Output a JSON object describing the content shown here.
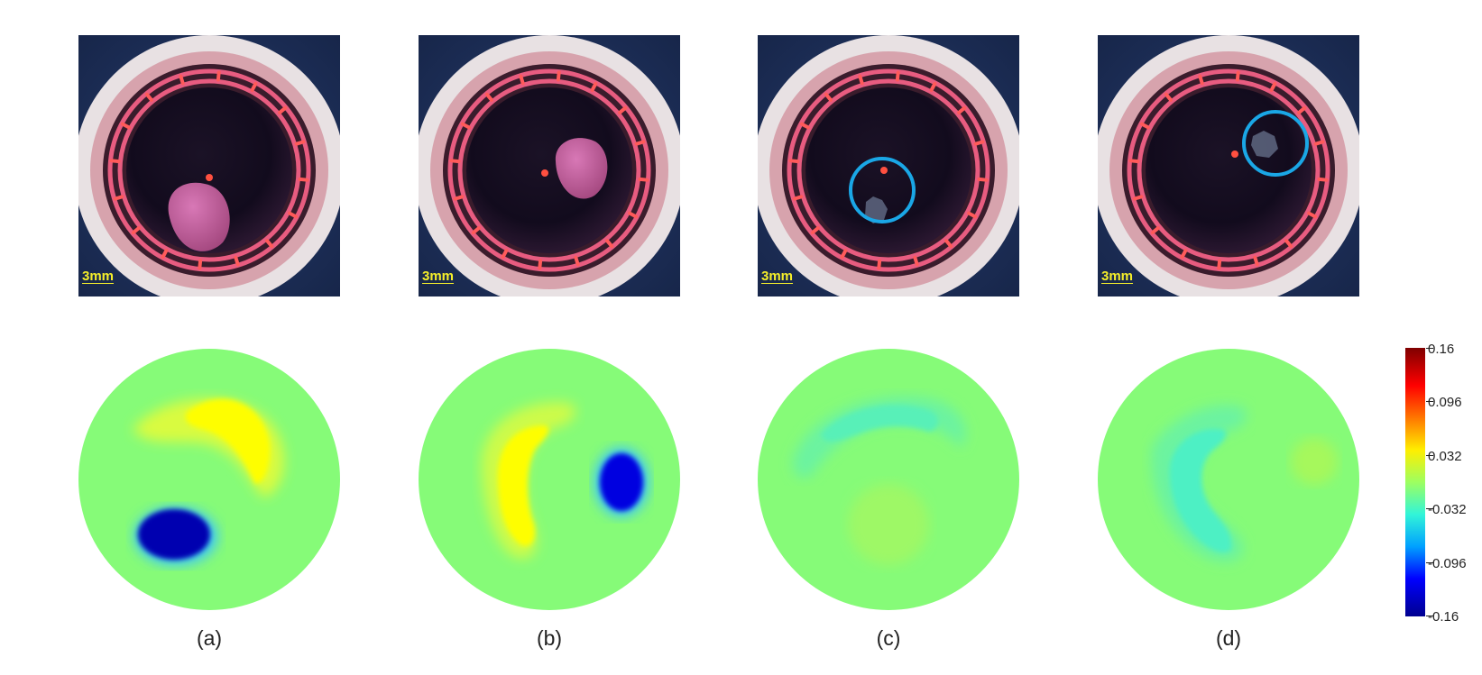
{
  "panels": [
    {
      "caption": "(a)",
      "scale": "3mm"
    },
    {
      "caption": "(b)",
      "scale": "3mm"
    },
    {
      "caption": "(c)",
      "scale": "3mm"
    },
    {
      "caption": "(d)",
      "scale": "3mm"
    }
  ],
  "colorbar": {
    "ticks": [
      "0.16",
      "0.096",
      "0.032",
      "-0.032",
      "-0.096",
      "-0.16"
    ]
  },
  "colors": {
    "background_field": "#86fb78",
    "positive": "#fefe00",
    "negative": "#0000b0",
    "marker_circle": "#1aa7e6"
  }
}
